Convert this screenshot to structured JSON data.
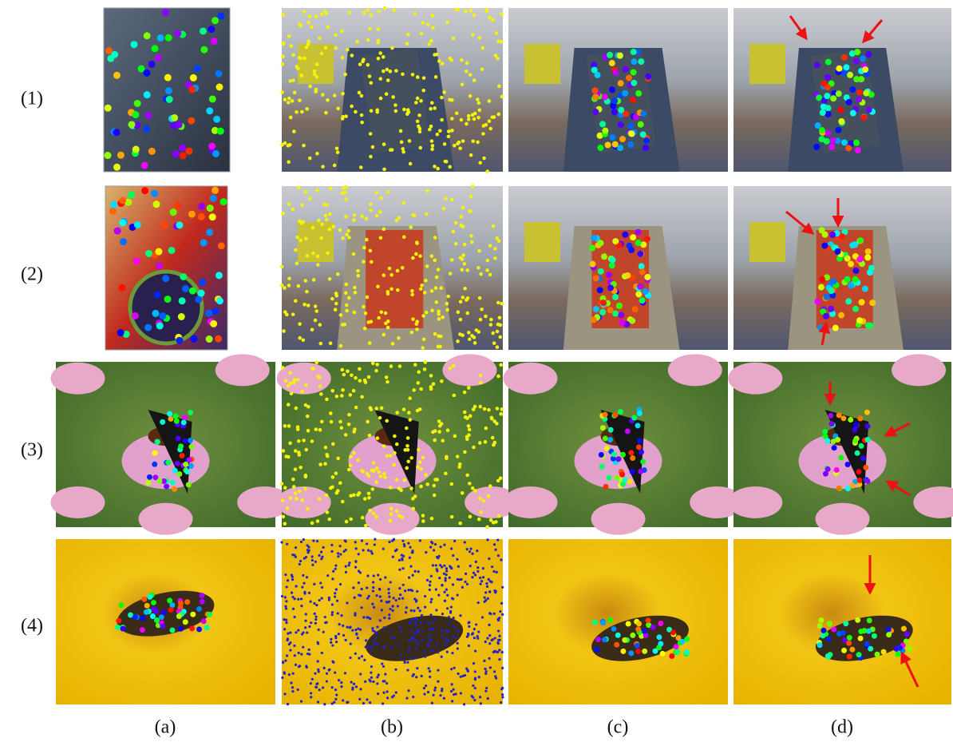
{
  "figure": {
    "row_labels": [
      "(1)",
      "(2)",
      "(3)",
      "(4)"
    ],
    "column_labels": [
      "(a)",
      "(b)",
      "(c)",
      "(d)"
    ]
  }
}
